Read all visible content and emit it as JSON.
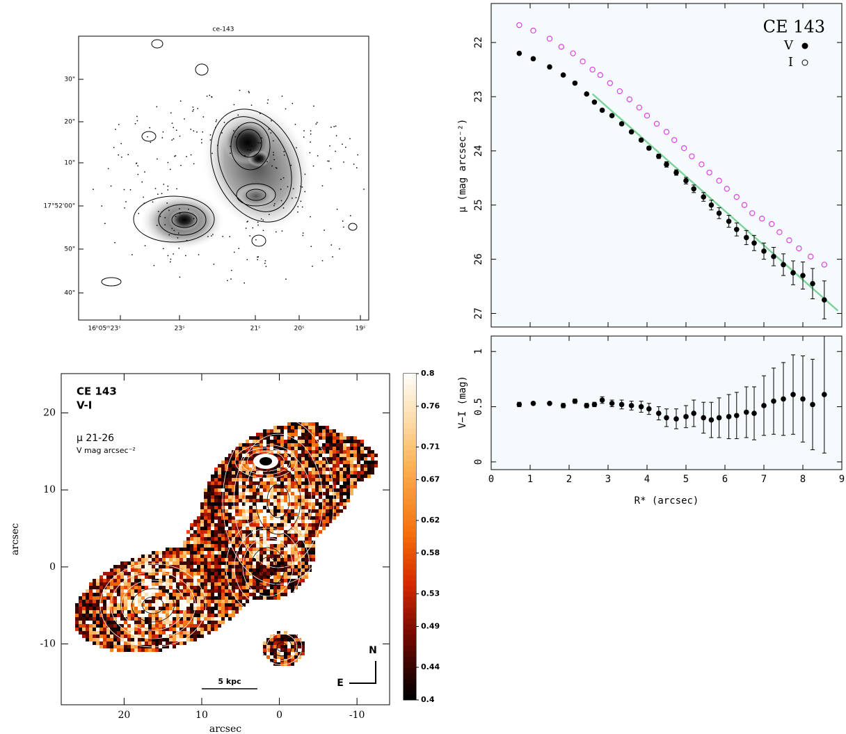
{
  "chart_data": [
    {
      "type": "image",
      "title": "ce-143",
      "ytick_labels": [
        "30\"",
        "20\"",
        "10\"",
        "17°52'00\"",
        "50\"",
        "40\""
      ],
      "xtick_labels": [
        "16ʰ05ᵐ23ˢ",
        "23ˢ",
        "21ˢ",
        "20ˢ",
        "19ˢ"
      ]
    },
    {
      "type": "colormap",
      "xlabel": "arcsec",
      "ylabel": "arcsec",
      "xlim": [
        28.1,
        -14.2
      ],
      "ylim": [
        -17.9,
        25.1
      ],
      "xticks": [
        20,
        10,
        0,
        -10
      ],
      "yticks": [
        20,
        10,
        0,
        -10
      ],
      "annotations": [
        "CE 143",
        "V-I",
        "μ  21-26",
        "V mag arcsec⁻²",
        "5 kpc",
        "N",
        "E"
      ],
      "colorbar": {
        "lim": [
          0.4,
          0.8
        ],
        "ticks": [
          0.8,
          0.76,
          0.71,
          0.67,
          0.62,
          0.58,
          0.53,
          0.49,
          0.44,
          0.4
        ]
      }
    },
    {
      "type": "scatter",
      "title": "CE 143",
      "ylabel": "μ (mag arcsec⁻²)",
      "xlim": [
        0,
        9
      ],
      "ylim": [
        27.25,
        21.28
      ],
      "xticks": [
        0,
        1,
        2,
        3,
        4,
        5,
        6,
        7,
        8,
        9
      ],
      "yticks": [
        22,
        23,
        24,
        25,
        26,
        27
      ],
      "series": [
        {
          "name": "V",
          "color": "#000000",
          "marker": "filled",
          "x": [
            0.72,
            1.08,
            1.5,
            1.85,
            2.15,
            2.45,
            2.65,
            2.85,
            3.1,
            3.35,
            3.6,
            3.85,
            4.05,
            4.3,
            4.5,
            4.75,
            5.0,
            5.2,
            5.45,
            5.65,
            5.85,
            6.1,
            6.3,
            6.55,
            6.75,
            7.0,
            7.25,
            7.5,
            7.75,
            8.0,
            8.25,
            8.55
          ],
          "values": [
            22.2,
            22.3,
            22.45,
            22.6,
            22.75,
            22.95,
            23.1,
            23.25,
            23.35,
            23.5,
            23.65,
            23.8,
            23.95,
            24.1,
            24.25,
            24.4,
            24.55,
            24.7,
            24.85,
            25.0,
            25.15,
            25.3,
            25.45,
            25.6,
            25.7,
            25.85,
            25.95,
            26.1,
            26.25,
            26.3,
            26.45,
            26.75
          ],
          "errors": [
            0.02,
            0.02,
            0.02,
            0.02,
            0.02,
            0.02,
            0.02,
            0.02,
            0.02,
            0.02,
            0.02,
            0.03,
            0.03,
            0.04,
            0.05,
            0.05,
            0.06,
            0.07,
            0.08,
            0.09,
            0.1,
            0.11,
            0.12,
            0.13,
            0.14,
            0.15,
            0.17,
            0.2,
            0.22,
            0.25,
            0.28,
            0.35
          ]
        },
        {
          "name": "I",
          "color": "#e040e0",
          "marker": "open",
          "x": [
            0.72,
            1.08,
            1.5,
            1.8,
            2.1,
            2.35,
            2.6,
            2.8,
            3.05,
            3.3,
            3.55,
            3.8,
            4.0,
            4.25,
            4.5,
            4.7,
            4.95,
            5.15,
            5.4,
            5.6,
            5.85,
            6.05,
            6.3,
            6.5,
            6.7,
            6.95,
            7.2,
            7.4,
            7.65,
            7.9,
            8.2,
            8.55
          ],
          "values": [
            21.68,
            21.78,
            21.93,
            22.08,
            22.2,
            22.35,
            22.5,
            22.6,
            22.75,
            22.9,
            23.05,
            23.2,
            23.35,
            23.5,
            23.65,
            23.8,
            23.95,
            24.1,
            24.25,
            24.4,
            24.55,
            24.7,
            24.85,
            25.0,
            25.15,
            25.25,
            25.35,
            25.5,
            25.65,
            25.8,
            25.95,
            26.1
          ]
        }
      ],
      "fit_line": {
        "color": "#7fd39a",
        "x": [
          2.6,
          8.9
        ],
        "values": [
          22.95,
          26.95
        ]
      }
    },
    {
      "type": "scatter",
      "xlabel": "R* (arcsec)",
      "ylabel": "V−I (mag)",
      "xlim": [
        0,
        9
      ],
      "ylim": [
        -0.07,
        1.14
      ],
      "xticks": [
        0,
        1,
        2,
        3,
        4,
        5,
        6,
        7,
        8,
        9
      ],
      "yticks": [
        0,
        0.5,
        1
      ],
      "series": [
        {
          "name": "V−I",
          "color": "#000000",
          "x": [
            0.72,
            1.08,
            1.5,
            1.85,
            2.15,
            2.45,
            2.65,
            2.85,
            3.1,
            3.35,
            3.6,
            3.85,
            4.05,
            4.3,
            4.5,
            4.75,
            5.0,
            5.2,
            5.45,
            5.65,
            5.85,
            6.1,
            6.3,
            6.55,
            6.75,
            7.0,
            7.25,
            7.5,
            7.75,
            8.0,
            8.25,
            8.55
          ],
          "values": [
            0.52,
            0.53,
            0.53,
            0.51,
            0.55,
            0.51,
            0.52,
            0.56,
            0.53,
            0.52,
            0.51,
            0.5,
            0.48,
            0.44,
            0.4,
            0.39,
            0.41,
            0.44,
            0.4,
            0.38,
            0.4,
            0.41,
            0.42,
            0.45,
            0.44,
            0.51,
            0.55,
            0.57,
            0.61,
            0.57,
            0.52,
            0.61
          ],
          "errors": [
            0.02,
            0.01,
            0.01,
            0.02,
            0.02,
            0.02,
            0.02,
            0.03,
            0.03,
            0.04,
            0.04,
            0.05,
            0.05,
            0.06,
            0.08,
            0.09,
            0.1,
            0.12,
            0.14,
            0.16,
            0.18,
            0.2,
            0.21,
            0.23,
            0.24,
            0.27,
            0.3,
            0.33,
            0.36,
            0.39,
            0.41,
            0.53
          ]
        }
      ]
    }
  ]
}
